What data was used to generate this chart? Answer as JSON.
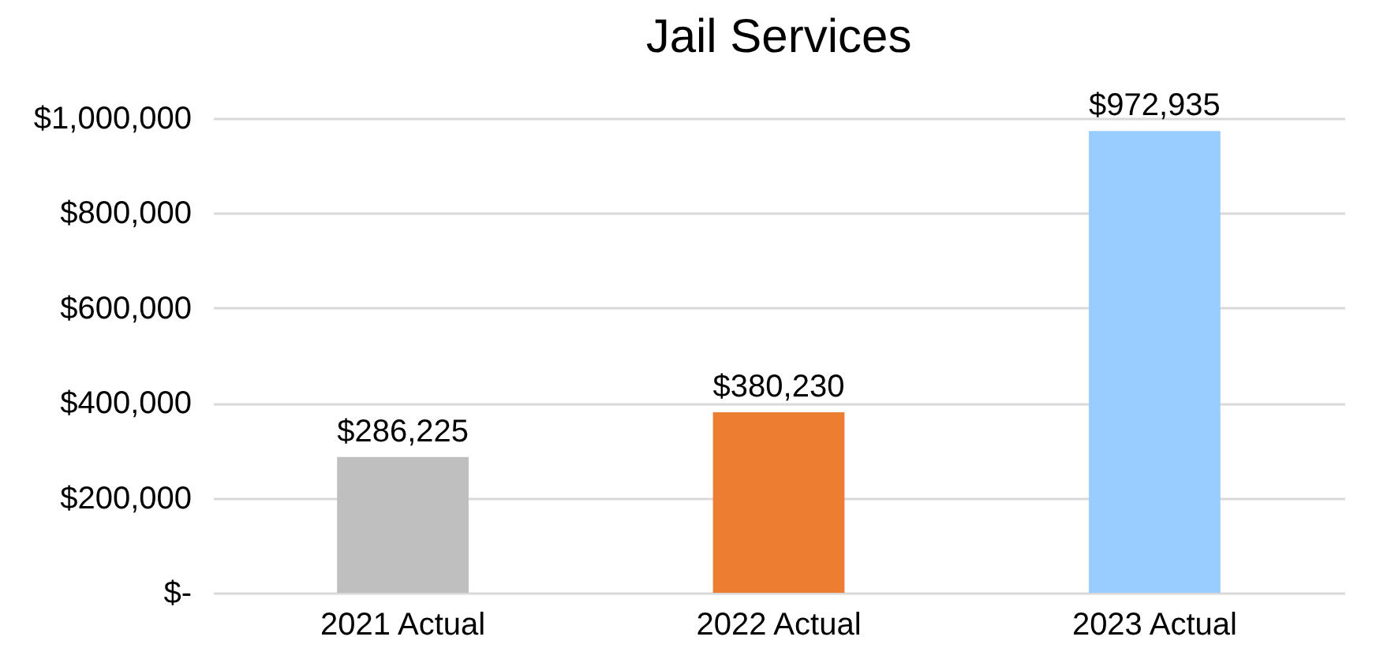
{
  "chart_data": {
    "type": "bar",
    "title": "Jail Services",
    "categories": [
      "2021 Actual",
      "2022 Actual",
      "2023 Actual"
    ],
    "values": [
      286225,
      380230,
      972935
    ],
    "colors": [
      "#bfbfbf",
      "#ed7d31",
      "#99ccff"
    ],
    "value_labels": [
      "$286,225",
      "$380,230",
      "$972,935"
    ],
    "ylim": [
      0,
      1000000
    ],
    "yticks": [
      {
        "value": 0,
        "label": "$-"
      },
      {
        "value": 200000,
        "label": "$200,000"
      },
      {
        "value": 400000,
        "label": "$400,000"
      },
      {
        "value": 600000,
        "label": "$600,000"
      },
      {
        "value": 800000,
        "label": "$800,000"
      },
      {
        "value": 1000000,
        "label": "$1,000,000"
      }
    ],
    "grid": "y"
  }
}
